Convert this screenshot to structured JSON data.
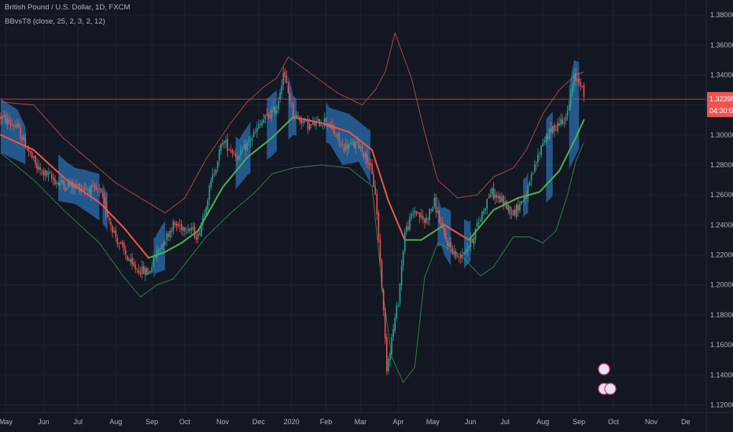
{
  "header": {
    "title": "British Pound / U.S. Dollar, 1D, FXCM",
    "indicator": "BBvsT8 (close, 25, 2, 3, 2, 12)"
  },
  "colors": {
    "background": "#131722",
    "grid": "#1e222d",
    "bull": "#26a69a",
    "bear": "#ef5350",
    "band": "#2a6fb0",
    "ma_up": "#4caf50",
    "ma_down": "#ef5350",
    "upper_band": "#d9534f",
    "lower_band": "#3c9a4a",
    "price_line": "#ef5350"
  },
  "price_tag": {
    "price": "1.32395",
    "countdown": "04:30:07"
  },
  "chart_data": {
    "type": "candlestick",
    "title": "",
    "xlabel": "",
    "ylabel": "",
    "ylim": [
      1.115,
      1.39
    ],
    "y_ticks": [
      1.12,
      1.14,
      1.16,
      1.18,
      1.2,
      1.22,
      1.24,
      1.26,
      1.28,
      1.3,
      1.32,
      1.34,
      1.36,
      1.38
    ],
    "y_tick_labels": [
      "1.12000",
      "1.14000",
      "1.16000",
      "1.18000",
      "1.20000",
      "1.22000",
      "1.24000",
      "1.26000",
      "1.28000",
      "1.30000",
      "1.32000",
      "1.34000",
      "1.36000",
      "1.38000"
    ],
    "x_tick_labels": [
      "May",
      "Jun",
      "Jul",
      "Aug",
      "Sep",
      "Oct",
      "Nov",
      "Dec",
      "2020",
      "Feb",
      "Mar",
      "Apr",
      "May",
      "Jun",
      "Jul",
      "Aug",
      "Sep",
      "Oct",
      "Nov",
      "De"
    ],
    "x_tick_index": [
      3,
      26,
      47,
      70,
      92,
      112,
      135,
      157,
      177,
      198,
      219,
      242,
      263,
      286,
      307,
      330,
      352,
      373,
      396,
      417
    ],
    "bar_count": 430,
    "last_bar_index": 355,
    "last_price": 1.32395,
    "price_path": [
      [
        0,
        1.312
      ],
      [
        10,
        1.305
      ],
      [
        22,
        1.278
      ],
      [
        35,
        1.268
      ],
      [
        50,
        1.265
      ],
      [
        60,
        1.262
      ],
      [
        70,
        1.232
      ],
      [
        80,
        1.212
      ],
      [
        90,
        1.208
      ],
      [
        95,
        1.222
      ],
      [
        105,
        1.24
      ],
      [
        115,
        1.238
      ],
      [
        120,
        1.232
      ],
      [
        128,
        1.268
      ],
      [
        135,
        1.296
      ],
      [
        145,
        1.285
      ],
      [
        155,
        1.302
      ],
      [
        160,
        1.31
      ],
      [
        168,
        1.318
      ],
      [
        172,
        1.342
      ],
      [
        178,
        1.314
      ],
      [
        188,
        1.306
      ],
      [
        198,
        1.31
      ],
      [
        208,
        1.292
      ],
      [
        218,
        1.294
      ],
      [
        224,
        1.282
      ],
      [
        228,
        1.262
      ],
      [
        232,
        1.2
      ],
      [
        235,
        1.145
      ],
      [
        242,
        1.19
      ],
      [
        246,
        1.235
      ],
      [
        252,
        1.25
      ],
      [
        258,
        1.242
      ],
      [
        264,
        1.255
      ],
      [
        270,
        1.232
      ],
      [
        278,
        1.218
      ],
      [
        286,
        1.228
      ],
      [
        292,
        1.245
      ],
      [
        298,
        1.262
      ],
      [
        305,
        1.256
      ],
      [
        312,
        1.248
      ],
      [
        320,
        1.26
      ],
      [
        330,
        1.296
      ],
      [
        338,
        1.306
      ],
      [
        345,
        1.314
      ],
      [
        349,
        1.338
      ],
      [
        353,
        1.336
      ],
      [
        355,
        1.324
      ]
    ],
    "ma_path": [
      [
        0,
        1.3
      ],
      [
        20,
        1.29
      ],
      [
        40,
        1.27
      ],
      [
        60,
        1.255
      ],
      [
        75,
        1.238
      ],
      [
        90,
        1.218
      ],
      [
        100,
        1.222
      ],
      [
        110,
        1.228
      ],
      [
        120,
        1.236
      ],
      [
        135,
        1.265
      ],
      [
        150,
        1.285
      ],
      [
        165,
        1.298
      ],
      [
        178,
        1.312
      ],
      [
        195,
        1.308
      ],
      [
        212,
        1.302
      ],
      [
        226,
        1.29
      ],
      [
        236,
        1.256
      ],
      [
        246,
        1.23
      ],
      [
        256,
        1.23
      ],
      [
        270,
        1.24
      ],
      [
        285,
        1.23
      ],
      [
        300,
        1.25
      ],
      [
        315,
        1.258
      ],
      [
        328,
        1.262
      ],
      [
        340,
        1.276
      ],
      [
        350,
        1.298
      ],
      [
        355,
        1.31
      ]
    ],
    "upper_band_path": [
      [
        0,
        1.322
      ],
      [
        20,
        1.32
      ],
      [
        38,
        1.298
      ],
      [
        55,
        1.282
      ],
      [
        70,
        1.268
      ],
      [
        85,
        1.258
      ],
      [
        100,
        1.248
      ],
      [
        112,
        1.258
      ],
      [
        125,
        1.284
      ],
      [
        140,
        1.308
      ],
      [
        150,
        1.322
      ],
      [
        160,
        1.332
      ],
      [
        168,
        1.338
      ],
      [
        175,
        1.352
      ],
      [
        190,
        1.34
      ],
      [
        205,
        1.328
      ],
      [
        220,
        1.32
      ],
      [
        228,
        1.33
      ],
      [
        234,
        1.342
      ],
      [
        240,
        1.368
      ],
      [
        250,
        1.338
      ],
      [
        258,
        1.302
      ],
      [
        266,
        1.27
      ],
      [
        278,
        1.258
      ],
      [
        290,
        1.26
      ],
      [
        300,
        1.272
      ],
      [
        312,
        1.278
      ],
      [
        320,
        1.29
      ],
      [
        330,
        1.314
      ],
      [
        340,
        1.33
      ],
      [
        350,
        1.34
      ],
      [
        355,
        1.342
      ]
    ],
    "lower_band_path": [
      [
        0,
        1.288
      ],
      [
        20,
        1.27
      ],
      [
        40,
        1.248
      ],
      [
        60,
        1.228
      ],
      [
        75,
        1.205
      ],
      [
        85,
        1.192
      ],
      [
        95,
        1.2
      ],
      [
        105,
        1.204
      ],
      [
        115,
        1.218
      ],
      [
        125,
        1.232
      ],
      [
        140,
        1.248
      ],
      [
        155,
        1.262
      ],
      [
        165,
        1.274
      ],
      [
        178,
        1.278
      ],
      [
        195,
        1.28
      ],
      [
        212,
        1.278
      ],
      [
        226,
        1.266
      ],
      [
        232,
        1.2
      ],
      [
        238,
        1.152
      ],
      [
        245,
        1.135
      ],
      [
        252,
        1.145
      ],
      [
        258,
        1.205
      ],
      [
        266,
        1.228
      ],
      [
        280,
        1.22
      ],
      [
        292,
        1.206
      ],
      [
        300,
        1.212
      ],
      [
        312,
        1.232
      ],
      [
        322,
        1.232
      ],
      [
        330,
        1.228
      ],
      [
        338,
        1.236
      ],
      [
        345,
        1.26
      ],
      [
        350,
        1.282
      ],
      [
        355,
        1.295
      ]
    ],
    "shaded_regions": [
      [
        0,
        15
      ],
      [
        35,
        60
      ],
      [
        62,
        65
      ],
      [
        93,
        100
      ],
      [
        143,
        152
      ],
      [
        162,
        168
      ],
      [
        175,
        180
      ],
      [
        198,
        225
      ],
      [
        266,
        274
      ],
      [
        282,
        286
      ],
      [
        318,
        321
      ],
      [
        332,
        336
      ],
      [
        346,
        352
      ]
    ],
    "volatility_seed": 0.0055
  }
}
